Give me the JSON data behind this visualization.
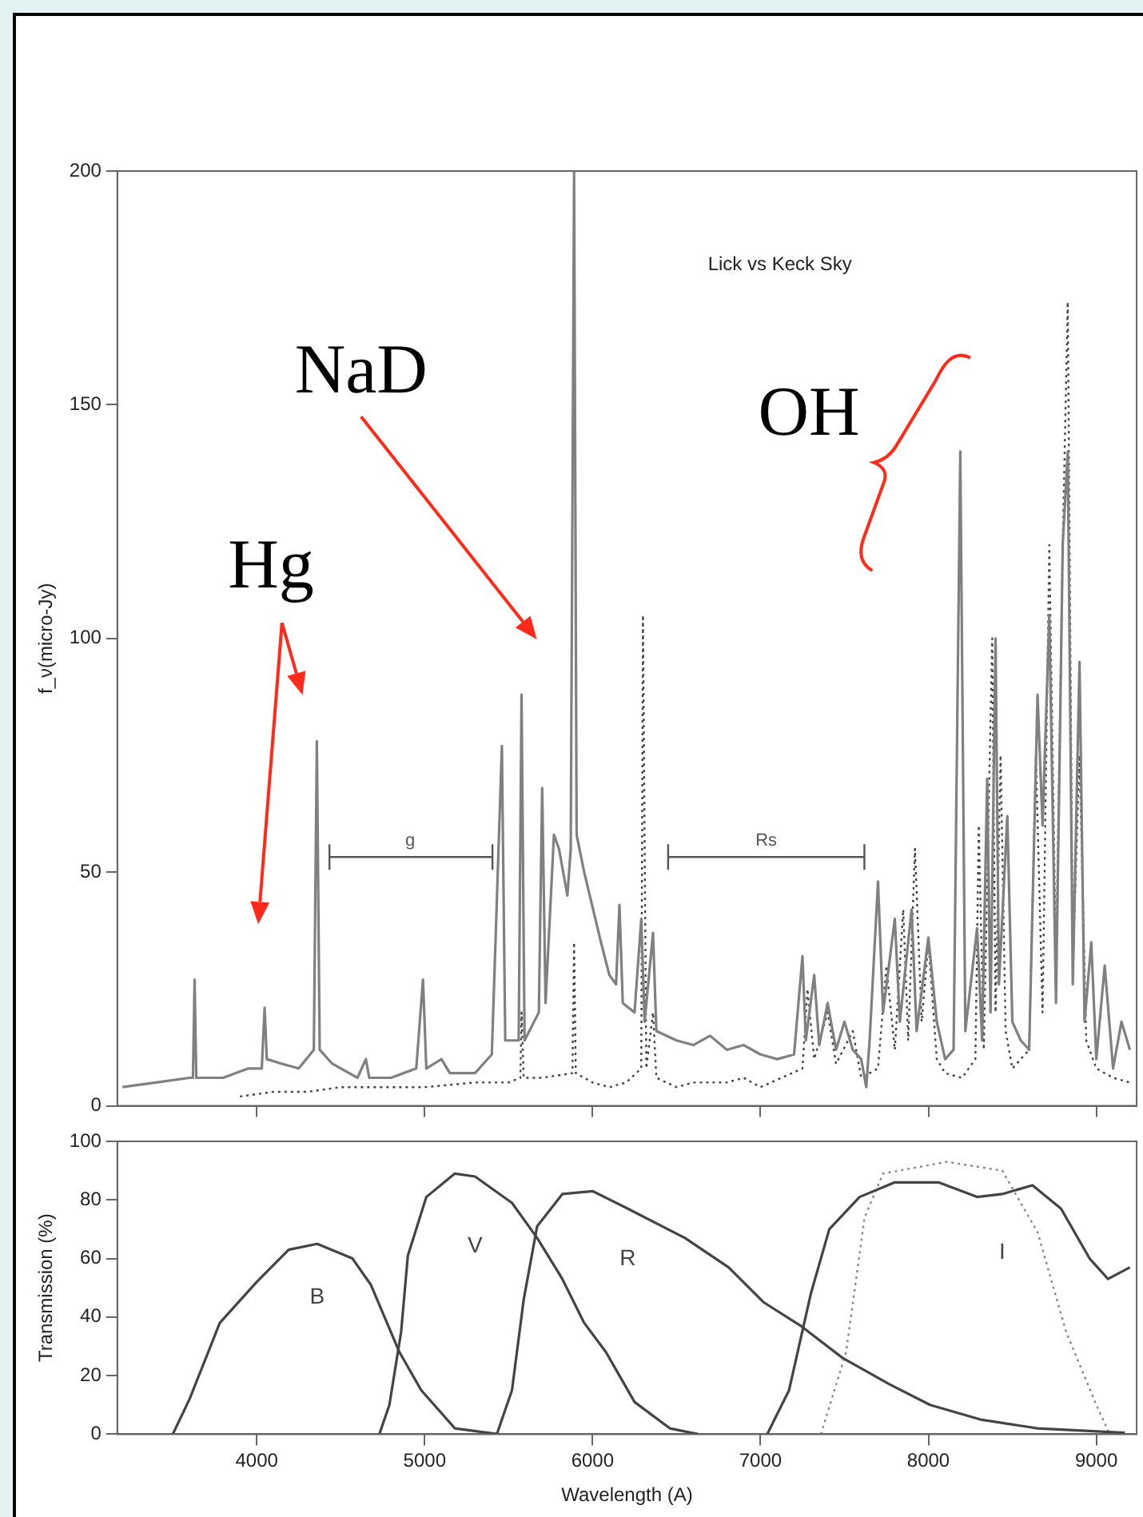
{
  "chart_data": [
    {
      "type": "line",
      "title": "Lick vs Keck Sky",
      "ylabel": "f_ν(micro-Jy)",
      "xlim": [
        3170,
        9240
      ],
      "xticks": [
        4000,
        5000,
        6000,
        7000,
        8000,
        9000
      ],
      "ylim": [
        0,
        200
      ],
      "yticks": [
        0,
        50,
        100,
        150,
        200
      ],
      "tick_labels": "y",
      "grid": false,
      "legend": false,
      "annotations": [
        "Hg",
        "NaD",
        "OH",
        "g",
        "Rs"
      ],
      "series": [
        {
          "color": "#808080",
          "line_style": "solid",
          "x": [
            3200,
            3400,
            3600,
            3620,
            3630,
            3640,
            3800,
            3950,
            4030,
            4047,
            4060,
            4150,
            4250,
            4340,
            4358,
            4375,
            4450,
            4600,
            4650,
            4670,
            4800,
            4950,
            4990,
            5010,
            5100,
            5150,
            5300,
            5400,
            5460,
            5480,
            5560,
            5577,
            5595,
            5680,
            5700,
            5720,
            5770,
            5800,
            5850,
            5870,
            5890,
            5905,
            5950,
            6050,
            6100,
            6140,
            6160,
            6180,
            6250,
            6290,
            6310,
            6360,
            6380,
            6500,
            6600,
            6700,
            6800,
            6900,
            7000,
            7100,
            7200,
            7250,
            7270,
            7320,
            7350,
            7400,
            7450,
            7500,
            7550,
            7600,
            7630,
            7650,
            7700,
            7730,
            7800,
            7830,
            7900,
            7930,
            8000,
            8050,
            8100,
            8150,
            8190,
            8220,
            8290,
            8320,
            8350,
            8370,
            8400,
            8420,
            8470,
            8500,
            8550,
            8600,
            8650,
            8680,
            8720,
            8760,
            8800,
            8830,
            8860,
            8900,
            8930,
            8970,
            9000,
            9050,
            9100,
            9150,
            9200
          ],
          "values": [
            4,
            5,
            6,
            6,
            27,
            6,
            6,
            8,
            8,
            21,
            10,
            9,
            8,
            12,
            78,
            12,
            9,
            6,
            10,
            6,
            6,
            8,
            27,
            8,
            10,
            7,
            7,
            11,
            77,
            14,
            14,
            88,
            14,
            20,
            68,
            22,
            58,
            55,
            45,
            55,
            200,
            58,
            50,
            35,
            28,
            26,
            43,
            22,
            20,
            40,
            18,
            37,
            16,
            14,
            13,
            15,
            12,
            13,
            11,
            10,
            11,
            32,
            14,
            28,
            13,
            22,
            12,
            18,
            12,
            10,
            4,
            14,
            48,
            20,
            40,
            18,
            42,
            16,
            36,
            18,
            10,
            12,
            140,
            16,
            38,
            14,
            70,
            20,
            100,
            26,
            62,
            18,
            14,
            12,
            88,
            60,
            105,
            22,
            120,
            140,
            26,
            95,
            18,
            35,
            10,
            30,
            8,
            18,
            12
          ]
        },
        {
          "color": "#444444",
          "line_style": "dotted",
          "x": [
            3900,
            4100,
            4300,
            4500,
            4800,
            5000,
            5300,
            5500,
            5570,
            5577,
            5590,
            5700,
            5880,
            5890,
            5900,
            6000,
            6100,
            6200,
            6290,
            6300,
            6320,
            6360,
            6380,
            6500,
            6600,
            6800,
            6900,
            7000,
            7250,
            7280,
            7320,
            7400,
            7450,
            7550,
            7600,
            7700,
            7750,
            7800,
            7850,
            7880,
            7920,
            7960,
            8000,
            8050,
            8100,
            8200,
            8280,
            8300,
            8330,
            8380,
            8400,
            8430,
            8460,
            8500,
            8600,
            8640,
            8680,
            8720,
            8760,
            8800,
            8830,
            8860,
            8900,
            8940,
            9000,
            9100,
            9200
          ],
          "values": [
            2,
            3,
            3,
            4,
            4,
            4,
            5,
            5,
            6,
            20,
            6,
            6,
            7,
            35,
            7,
            5,
            4,
            5,
            8,
            105,
            8,
            20,
            6,
            4,
            5,
            5,
            6,
            4,
            8,
            25,
            10,
            20,
            9,
            16,
            6,
            8,
            30,
            12,
            42,
            14,
            55,
            18,
            35,
            10,
            7,
            6,
            10,
            60,
            12,
            100,
            20,
            75,
            16,
            8,
            12,
            75,
            20,
            120,
            30,
            120,
            172,
            30,
            75,
            14,
            8,
            6,
            5
          ]
        }
      ]
    },
    {
      "type": "line",
      "xlabel": "Wavelength (A)",
      "ylabel": "Transmission (%)",
      "xlim": [
        3170,
        9240
      ],
      "xticks": [
        4000,
        5000,
        6000,
        7000,
        8000,
        9000
      ],
      "ylim": [
        0,
        100
      ],
      "yticks": [
        0,
        20,
        40,
        60,
        80,
        100
      ],
      "grid": false,
      "legend": false,
      "series": [
        {
          "name": "B",
          "color": "#444444",
          "line_style": "solid",
          "x": [
            3500,
            3600,
            3780,
            4000,
            4190,
            4360,
            4570,
            4680,
            4850,
            4980,
            5180,
            5440
          ],
          "values": [
            0,
            12,
            38,
            52,
            63,
            65,
            60,
            51,
            28,
            15,
            2,
            0
          ]
        },
        {
          "name": "V",
          "color": "#444444",
          "line_style": "solid",
          "x": [
            4730,
            4790,
            4860,
            4900,
            5010,
            5180,
            5300,
            5520,
            5670,
            5820,
            5950,
            6080,
            6250,
            6460,
            6630
          ],
          "values": [
            0,
            10,
            35,
            61,
            81,
            89,
            88,
            79,
            67,
            53,
            38,
            28,
            11,
            2,
            0
          ]
        },
        {
          "name": "R",
          "color": "#444444",
          "line_style": "solid",
          "x": [
            5430,
            5520,
            5590,
            5670,
            5820,
            6000,
            6210,
            6550,
            6810,
            7020,
            7240,
            7490,
            7770,
            8010,
            8310,
            8650,
            9170
          ],
          "values": [
            0,
            15,
            46,
            71,
            82,
            83,
            77,
            67,
            57,
            45,
            37,
            26,
            17,
            10,
            5,
            2,
            0.5
          ]
        },
        {
          "name": "I",
          "color": "#444444",
          "line_style": "solid",
          "x": [
            7040,
            7170,
            7300,
            7410,
            7590,
            7800,
            8060,
            8290,
            8440,
            8620,
            8790,
            8960,
            9070,
            9200
          ],
          "values": [
            0,
            15,
            48,
            70,
            81,
            86,
            86,
            81,
            82,
            85,
            77,
            60,
            53,
            57
          ]
        },
        {
          "color": "#888888",
          "line_style": "dotted",
          "x": [
            7360,
            7510,
            7620,
            7730,
            8110,
            8440,
            8650,
            8820,
            9000,
            9080
          ],
          "values": [
            0,
            28,
            74,
            89,
            93,
            90,
            69,
            35,
            10,
            0
          ]
        }
      ]
    }
  ]
}
